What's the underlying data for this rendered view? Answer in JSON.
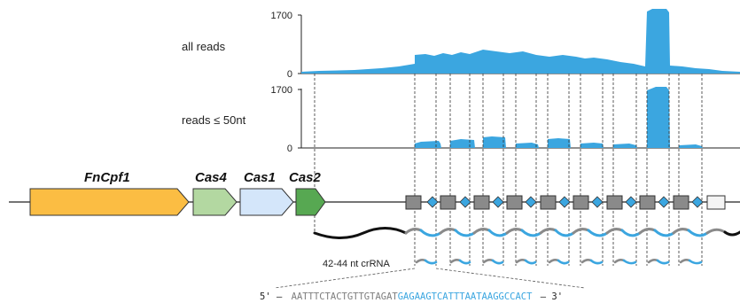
{
  "tracks": {
    "all_reads": {
      "label": "all reads",
      "ymax_label": "1700",
      "ymin_label": "0"
    },
    "short_reads": {
      "label": "reads ≤ 50nt",
      "ymax_label": "1700",
      "ymin_label": "0"
    }
  },
  "genes": [
    {
      "name": "FnCpf1",
      "color": "#fbbd43"
    },
    {
      "name": "Cas4",
      "color": "#b3d8a1"
    },
    {
      "name": "Cas1",
      "color": "#d4e6fa"
    },
    {
      "name": "Cas2",
      "color": "#57a852"
    }
  ],
  "array": {
    "repeat_count": 9,
    "repeat_color": "#8a8a8a",
    "spacer_color": "#3ba6e0"
  },
  "crrna": {
    "label": "42-44 nt crRNA",
    "prefix": "5' –",
    "repeat_part": "AATTTCTACTGTTGTAGAT",
    "spacer_part": "GAGAAGTCATTTAATAAGGCCACT",
    "suffix": "– 3'",
    "repeat_color": "#7d7d7d",
    "spacer_color": "#3ba6e0"
  },
  "colors": {
    "coverage": "#3ba6e0"
  }
}
